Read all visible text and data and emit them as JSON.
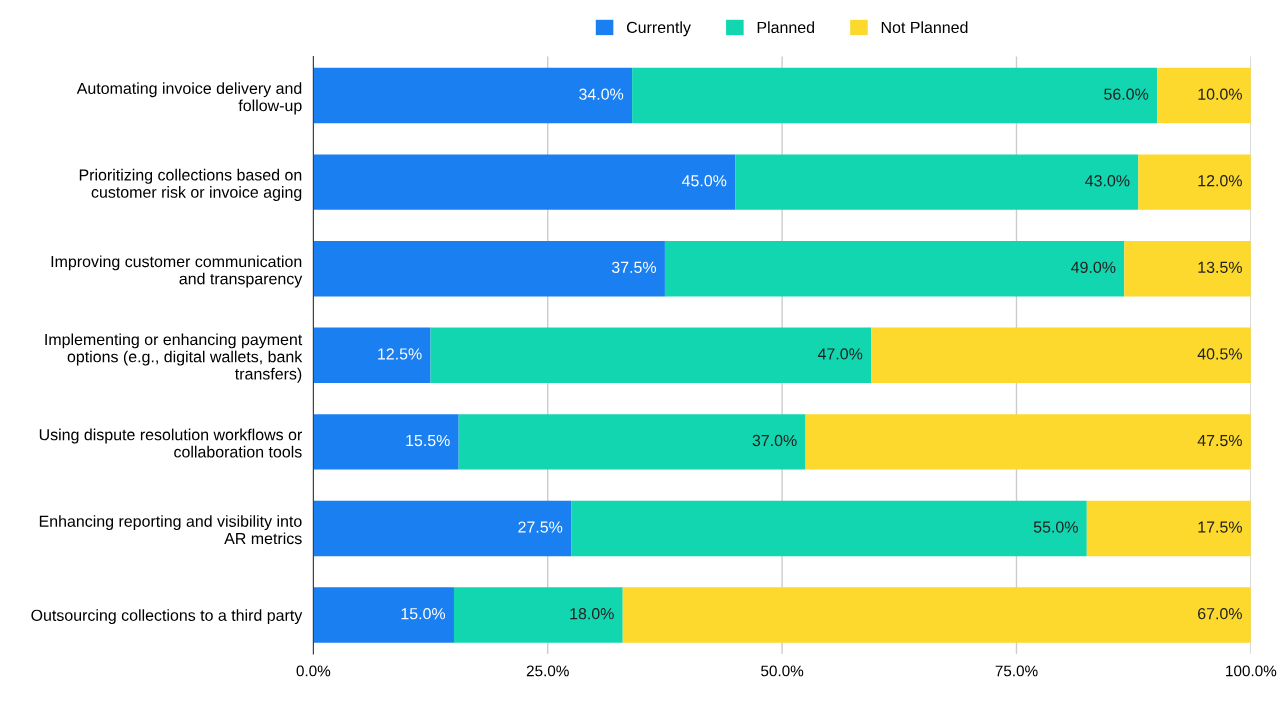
{
  "chart_data": {
    "type": "bar",
    "orientation": "horizontal",
    "stacked": true,
    "categories": [
      "Automating invoice delivery and\nfollow-up",
      "Prioritizing collections based on\ncustomer risk or invoice aging",
      "Improving customer communication\nand transparency",
      "Implementing or enhancing payment\noptions (e.g., digital wallets, bank\ntransfers)",
      "Using dispute resolution workflows or\ncollaboration tools",
      "Enhancing reporting and visibility into\nAR metrics",
      "Outsourcing collections to a third party"
    ],
    "series": [
      {
        "name": "Currently",
        "color": "#1a7ff0",
        "values": [
          34.0,
          45.0,
          37.5,
          12.5,
          15.5,
          27.5,
          15.0
        ],
        "value_labels": [
          "34.0%",
          "45.0%",
          "37.5%",
          "12.5%",
          "15.5%",
          "27.5%",
          "15.0%"
        ]
      },
      {
        "name": "Planned",
        "color": "#12d6b0",
        "values": [
          56.0,
          43.0,
          49.0,
          47.0,
          37.0,
          55.0,
          18.0
        ],
        "value_labels": [
          "56.0%",
          "43.0%",
          "49.0%",
          "47.0%",
          "37.0%",
          "55.0%",
          "18.0%"
        ]
      },
      {
        "name": "Not Planned",
        "color": "#fcd92c",
        "values": [
          10.0,
          12.0,
          13.5,
          40.5,
          47.5,
          17.5,
          67.0
        ],
        "value_labels": [
          "10.0%",
          "12.0%",
          "13.5%",
          "40.5%",
          "47.5%",
          "17.5%",
          "67.0%"
        ]
      }
    ],
    "xlim": [
      0,
      100
    ],
    "xticks": [
      {
        "value": 0,
        "label": "0.0%"
      },
      {
        "value": 25,
        "label": "25.0%"
      },
      {
        "value": 50,
        "label": "50.0%"
      },
      {
        "value": 75,
        "label": "75.0%"
      },
      {
        "value": 100,
        "label": "100.0%"
      }
    ],
    "grid": "x",
    "legend": "top"
  }
}
